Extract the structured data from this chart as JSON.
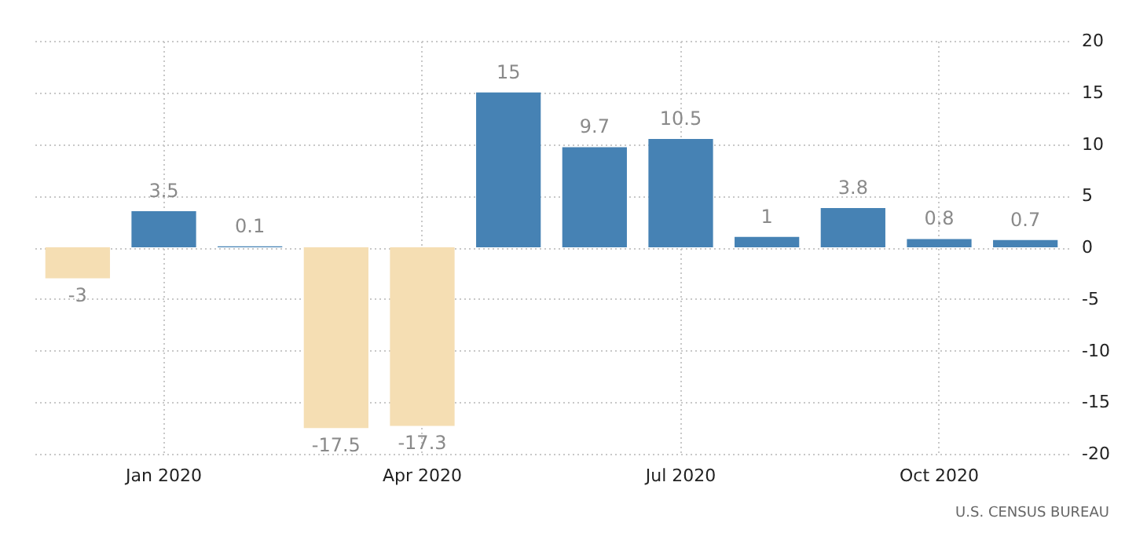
{
  "chart_data": {
    "type": "bar",
    "categories": [
      null,
      "Jan 2020",
      null,
      null,
      "Apr 2020",
      null,
      null,
      "Jul 2020",
      null,
      null,
      "Oct 2020",
      null
    ],
    "values": [
      -3,
      3.5,
      0.1,
      -17.5,
      -17.3,
      15,
      9.7,
      10.5,
      1,
      3.8,
      0.8,
      0.7
    ],
    "colors": [
      "#f5deb3",
      "#4682b4",
      "#4682b4",
      "#f5deb3",
      "#f5deb3",
      "#4682b4",
      "#4682b4",
      "#4682b4",
      "#4682b4",
      "#4682b4",
      "#4682b4",
      "#4682b4"
    ],
    "ylim": [
      -20,
      20
    ],
    "yticks": [
      -20,
      -15,
      -10,
      -5,
      0,
      5,
      10,
      15,
      20
    ],
    "grid": true,
    "data_labels": true,
    "annotations": [
      "U.S. CENSUS BUREAU"
    ]
  }
}
